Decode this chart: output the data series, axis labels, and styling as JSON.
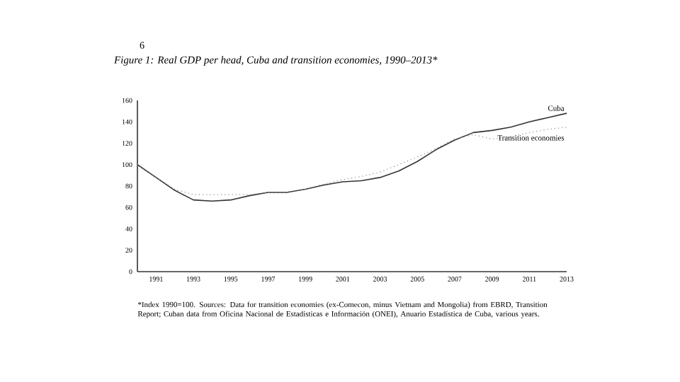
{
  "chart_data": {
    "type": "line",
    "title": "Figure 1: Real GDP per head, Cuba and transition economies, 1990–2013*",
    "x": [
      1990,
      1991,
      1992,
      1993,
      1994,
      1995,
      1996,
      1997,
      1998,
      1999,
      2000,
      2001,
      2002,
      2003,
      2004,
      2005,
      2006,
      2007,
      2008,
      2009,
      2010,
      2011,
      2012,
      2013
    ],
    "series": [
      {
        "name": "Cuba",
        "color": "#333333",
        "line_style": "solid",
        "values": [
          100,
          88,
          76,
          67,
          66,
          67,
          71,
          74,
          74,
          77,
          81,
          84,
          85,
          88,
          94,
          103,
          114,
          123,
          130,
          132,
          135,
          140,
          144,
          148
        ]
      },
      {
        "name": "Transition economies",
        "color": "#8a8a8a",
        "line_style": "dotted",
        "values": [
          100,
          88,
          77,
          72,
          72,
          72,
          72,
          74,
          74,
          77,
          82,
          86,
          89,
          93,
          100,
          107,
          115,
          124,
          128,
          124,
          126,
          130,
          133,
          135
        ]
      }
    ],
    "xlim": [
      1990,
      2013
    ],
    "ylim": [
      0,
      160
    ],
    "xticks": [
      1991,
      1993,
      1995,
      1997,
      1999,
      2001,
      2003,
      2005,
      2007,
      2009,
      2011,
      2013
    ],
    "yticks": [
      0,
      20,
      40,
      60,
      80,
      100,
      120,
      140,
      160
    ],
    "grid": false,
    "annotations": [
      "6",
      "*Index 1990=100. Sources: Data for transition economies (ex-Comecon, minus Vietnam and Mongolia) from EBRD, Transition Report; Cuban data from Oficina Nacional de Estadísticas e Información (ONEI), Anuario Estadística de Cuba, various years."
    ]
  }
}
